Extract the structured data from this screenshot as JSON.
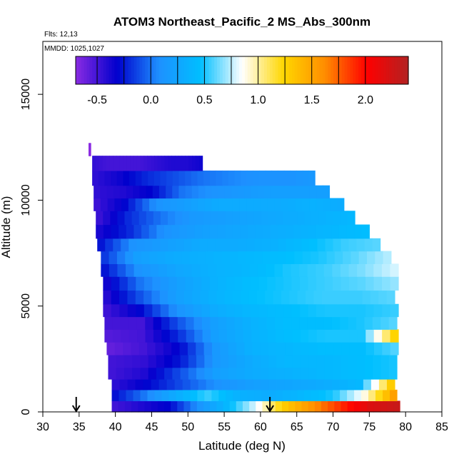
{
  "chart_data": {
    "type": "heatmap",
    "title": "ATOM3 Northeast_Pacific_2 MS_Abs_300nm",
    "notes": [
      "Flts: 12,13",
      "MMDD: 1025,1027"
    ],
    "xlabel": "Latitude (deg N)",
    "ylabel": "Altitude (m)",
    "xlim": [
      30,
      85
    ],
    "ylim": [
      0,
      17500
    ],
    "xticks": [
      "30",
      "35",
      "40",
      "45",
      "50",
      "55",
      "60",
      "65",
      "70",
      "75",
      "80",
      "85"
    ],
    "xtick_values": [
      30,
      35,
      40,
      45,
      50,
      55,
      60,
      65,
      70,
      75,
      80,
      85
    ],
    "yticks": [
      "0",
      "5000",
      "10000",
      "15000"
    ],
    "ytick_values": [
      0,
      5000,
      10000,
      15000
    ],
    "colorbar": {
      "range": [
        -0.7,
        2.4
      ],
      "tick_labels": [
        "-0.5",
        "0.0",
        "0.5",
        "1.0",
        "1.5",
        "2.0"
      ],
      "tick_values": [
        -0.5,
        0.0,
        0.5,
        1.0,
        1.5,
        2.0
      ],
      "colors": [
        "#8a2be2",
        "#0000cd",
        "#1e90ff",
        "#00bfff",
        "#ffffff",
        "#ffd700",
        "#ff8c00",
        "#ff0000",
        "#b22222"
      ]
    },
    "flight_markers_latitude": [
      34.6,
      61.3
    ],
    "rows": [
      {
        "altitude": 12400,
        "lat_start": 36.3,
        "lat_end": 36.6,
        "values": [
          -0.8
        ]
      },
      {
        "altitude": 11800,
        "lat_start": 36.8,
        "lat_end": 52.0,
        "values": [
          -0.45,
          -0.5,
          -0.5,
          -0.5,
          -0.45,
          -0.4,
          -0.4,
          -0.35
        ]
      },
      {
        "altitude": 11000,
        "lat_start": 36.8,
        "lat_end": 67.5,
        "values": [
          -0.45,
          -0.35,
          -0.2,
          -0.1,
          0.0,
          0.05,
          0.1,
          0.1,
          0.15
        ]
      },
      {
        "altitude": 10400,
        "lat_start": 37.0,
        "lat_end": 69.5,
        "values": [
          -0.45,
          -0.4,
          -0.3,
          0.0,
          0.1,
          0.15,
          0.2,
          0.2,
          0.2
        ]
      },
      {
        "altitude": 9800,
        "lat_start": 37.0,
        "lat_end": 71.5,
        "values": [
          -0.5,
          -0.3,
          0.1,
          0.2,
          0.3,
          0.3,
          0.3,
          0.35,
          0.3
        ]
      },
      {
        "altitude": 9200,
        "lat_start": 37.3,
        "lat_end": 73.0,
        "values": [
          -0.5,
          -0.2,
          0.0,
          0.15,
          0.2,
          0.25,
          0.3,
          0.35,
          0.4
        ]
      },
      {
        "altitude": 8500,
        "lat_start": 37.3,
        "lat_end": 75.0,
        "values": [
          -0.4,
          -0.2,
          0.1,
          0.2,
          0.25,
          0.3,
          0.35,
          0.4,
          0.45
        ]
      },
      {
        "altitude": 7900,
        "lat_start": 37.5,
        "lat_end": 76.5,
        "values": [
          -0.3,
          0.1,
          0.2,
          0.3,
          0.3,
          0.35,
          0.45,
          0.55,
          0.6
        ]
      },
      {
        "altitude": 7300,
        "lat_start": 38.0,
        "lat_end": 78.0,
        "values": [
          -0.2,
          0.2,
          0.3,
          0.35,
          0.4,
          0.45,
          0.5,
          0.6,
          0.75
        ]
      },
      {
        "altitude": 6700,
        "lat_start": 38.0,
        "lat_end": 79.0,
        "values": [
          -0.3,
          0.1,
          0.25,
          0.35,
          0.4,
          0.5,
          0.55,
          0.65,
          0.8
        ]
      },
      {
        "altitude": 6100,
        "lat_start": 38.3,
        "lat_end": 79.0,
        "values": [
          -0.4,
          0.0,
          0.2,
          0.35,
          0.45,
          0.5,
          0.55,
          0.6,
          0.7
        ]
      },
      {
        "altitude": 5400,
        "lat_start": 38.3,
        "lat_end": 78.5,
        "values": [
          -0.45,
          -0.1,
          0.2,
          0.35,
          0.45,
          0.5,
          0.55,
          0.55,
          0.6
        ]
      },
      {
        "altitude": 4800,
        "lat_start": 38.3,
        "lat_end": 79.0,
        "values": [
          -0.5,
          -0.3,
          0.1,
          0.3,
          0.4,
          0.45,
          0.5,
          0.5,
          0.55
        ]
      },
      {
        "altitude": 4200,
        "lat_start": 38.5,
        "lat_end": 78.8,
        "values": [
          -0.5,
          -0.5,
          -0.1,
          0.2,
          0.35,
          0.45,
          0.45,
          0.5,
          0.6
        ]
      },
      {
        "altitude": 3600,
        "lat_start": 38.5,
        "lat_end": 79.0,
        "values": [
          -0.55,
          -0.5,
          -0.2,
          0.2,
          0.35,
          0.45,
          0.5,
          0.5,
          1.35
        ]
      },
      {
        "altitude": 3000,
        "lat_start": 38.8,
        "lat_end": 79.0,
        "values": [
          -0.6,
          -0.5,
          -0.3,
          0.15,
          0.35,
          0.4,
          0.45,
          0.45,
          0.6
        ]
      },
      {
        "altitude": 2400,
        "lat_start": 39.0,
        "lat_end": 78.8,
        "values": [
          -0.5,
          -0.45,
          -0.25,
          0.15,
          0.3,
          0.4,
          0.4,
          0.45,
          0.5
        ]
      },
      {
        "altitude": 1800,
        "lat_start": 39.0,
        "lat_end": 78.8,
        "values": [
          -0.5,
          -0.4,
          -0.1,
          0.2,
          0.3,
          0.35,
          0.4,
          0.45,
          0.5
        ]
      },
      {
        "altitude": 1300,
        "lat_start": 39.5,
        "lat_end": 78.5,
        "values": [
          -0.45,
          -0.3,
          -0.1,
          0.1,
          0.2,
          0.25,
          0.3,
          0.4,
          1.4
        ]
      },
      {
        "altitude": 800,
        "lat_start": 39.5,
        "lat_end": 78.8,
        "values": [
          -0.3,
          0.0,
          0.3,
          0.55,
          0.35,
          0.3,
          0.4,
          0.5,
          0.9,
          1.6
        ]
      },
      {
        "altitude": 250,
        "lat_start": 39.5,
        "lat_end": 79.2,
        "values": [
          -0.5,
          -0.4,
          -0.3,
          0.1,
          0.4,
          0.8,
          1.3,
          1.6,
          1.9,
          2.2,
          2.3
        ]
      }
    ]
  }
}
